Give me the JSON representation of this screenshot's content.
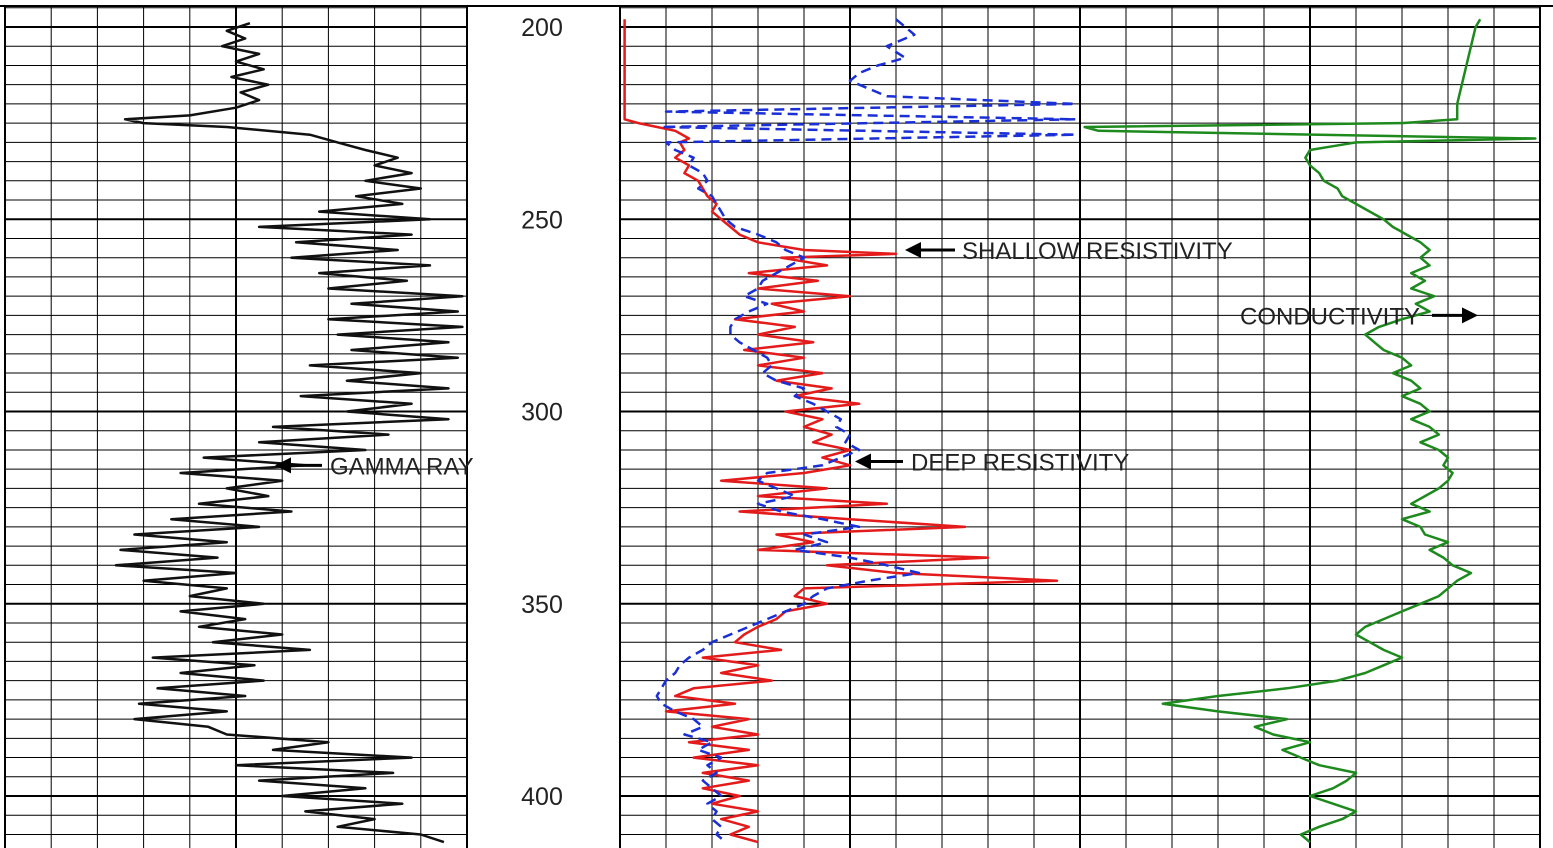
{
  "chart_data": {
    "type": "line",
    "depth_axis": {
      "labels": [
        "200",
        "250",
        "300",
        "350",
        "400"
      ],
      "values": [
        200,
        250,
        300,
        350,
        400
      ],
      "range": [
        198,
        412
      ],
      "direction": "downward"
    },
    "grid": true,
    "annotations": [
      {
        "text": "GAMMA RAY",
        "depth": 314,
        "series": "gamma_ray"
      },
      {
        "text": "SHALLOW RESISTIVITY",
        "depth": 258,
        "series": "shallow_resistivity"
      },
      {
        "text": "DEEP RESISTIVITY",
        "depth": 313,
        "series": "deep_resistivity"
      },
      {
        "text": "CONDUCTIVITY",
        "depth": 275,
        "series": "conductivity"
      }
    ],
    "series": [
      {
        "key": "gamma_ray",
        "track": 1,
        "style": "solid",
        "color": "#111111",
        "scale": [
          0,
          100
        ],
        "depth": [
          199,
          201,
          203,
          205,
          207,
          209,
          211,
          213,
          215,
          217,
          219,
          221,
          223,
          224,
          225,
          226,
          228,
          230,
          232,
          234,
          236,
          238,
          240,
          242,
          244,
          246,
          248,
          250,
          252,
          254,
          256,
          258,
          260,
          262,
          264,
          266,
          268,
          270,
          272,
          274,
          276,
          278,
          280,
          282,
          284,
          286,
          288,
          290,
          292,
          294,
          296,
          298,
          300,
          302,
          304,
          306,
          308,
          310,
          312,
          314,
          316,
          318,
          320,
          322,
          324,
          326,
          328,
          330,
          332,
          334,
          336,
          338,
          340,
          342,
          344,
          346,
          348,
          350,
          352,
          354,
          356,
          358,
          360,
          362,
          364,
          366,
          368,
          370,
          372,
          374,
          376,
          378,
          380,
          382,
          384,
          386,
          388,
          390,
          392,
          394,
          396,
          398,
          400,
          402,
          404,
          406,
          408,
          410,
          412
        ],
        "values": [
          53,
          48,
          52,
          47,
          55,
          50,
          56,
          49,
          57,
          51,
          55,
          50,
          40,
          26,
          30,
          48,
          66,
          72,
          78,
          85,
          80,
          88,
          78,
          90,
          76,
          86,
          68,
          92,
          55,
          88,
          63,
          85,
          62,
          92,
          68,
          87,
          70,
          99,
          75,
          98,
          70,
          99,
          72,
          96,
          75,
          98,
          66,
          90,
          74,
          96,
          64,
          88,
          74,
          96,
          58,
          83,
          55,
          78,
          43,
          65,
          38,
          60,
          48,
          57,
          42,
          62,
          36,
          55,
          28,
          48,
          25,
          46,
          24,
          50,
          30,
          48,
          40,
          56,
          38,
          52,
          42,
          60,
          45,
          66,
          32,
          54,
          38,
          56,
          33,
          52,
          29,
          48,
          28,
          44,
          48,
          70,
          58,
          88,
          50,
          84,
          55,
          78,
          60,
          86,
          65,
          80,
          72,
          90,
          95
        ]
      },
      {
        "key": "shallow_resistivity",
        "track": 2,
        "style": "solid",
        "color": "#e31b1b",
        "scale": [
          0,
          100
        ],
        "depth": [
          198,
          200,
          205,
          210,
          215,
          220,
          224,
          225,
          227,
          229,
          230,
          232,
          234,
          236,
          238,
          240,
          242,
          244,
          246,
          248,
          250,
          252,
          254,
          256,
          258,
          259,
          260,
          262,
          264,
          266,
          268,
          270,
          272,
          274,
          276,
          278,
          280,
          282,
          284,
          286,
          288,
          290,
          292,
          294,
          296,
          298,
          300,
          302,
          304,
          306,
          308,
          310,
          312,
          314,
          316,
          318,
          320,
          322,
          324,
          326,
          328,
          330,
          332,
          334,
          336,
          338,
          340,
          342,
          344,
          346,
          348,
          350,
          352,
          354,
          356,
          358,
          360,
          362,
          364,
          366,
          368,
          370,
          372,
          374,
          376,
          378,
          380,
          382,
          384,
          386,
          388,
          390,
          392,
          394,
          396,
          398,
          400,
          402,
          404,
          406,
          408,
          410,
          412
        ],
        "values": [
          1,
          1,
          1,
          1,
          1,
          1,
          1,
          4,
          12,
          15,
          13,
          14,
          12,
          15,
          14,
          17,
          18,
          19,
          21,
          20,
          22,
          24,
          26,
          30,
          40,
          60,
          35,
          45,
          28,
          43,
          30,
          50,
          33,
          40,
          25,
          38,
          30,
          42,
          27,
          40,
          30,
          44,
          34,
          46,
          38,
          52,
          36,
          44,
          40,
          46,
          42,
          50,
          44,
          50,
          40,
          22,
          45,
          30,
          58,
          26,
          50,
          75,
          34,
          42,
          30,
          80,
          45,
          60,
          95,
          40,
          38,
          45,
          36,
          34,
          30,
          27,
          25,
          35,
          18,
          30,
          22,
          33,
          16,
          12,
          25,
          10,
          28,
          20,
          30,
          15,
          28,
          16,
          30,
          18,
          28,
          18,
          26,
          20,
          30,
          22,
          28,
          24,
          30
        ]
      },
      {
        "key": "deep_resistivity",
        "track": 2,
        "style": "dashed",
        "color": "#1a2fd6",
        "scale": [
          0,
          100
        ],
        "depth": [
          198,
          200,
          202,
          205,
          208,
          210,
          212,
          214,
          216,
          218,
          220,
          222,
          224,
          226,
          228,
          230,
          232,
          234,
          236,
          238,
          240,
          242,
          244,
          246,
          248,
          250,
          252,
          254,
          256,
          258,
          260,
          262,
          264,
          266,
          268,
          270,
          272,
          274,
          276,
          278,
          280,
          282,
          284,
          286,
          288,
          290,
          292,
          294,
          296,
          298,
          300,
          302,
          304,
          306,
          308,
          310,
          312,
          314,
          316,
          318,
          320,
          322,
          324,
          326,
          328,
          330,
          332,
          334,
          336,
          338,
          340,
          342,
          344,
          346,
          348,
          350,
          352,
          354,
          356,
          358,
          360,
          362,
          364,
          366,
          368,
          370,
          372,
          374,
          376,
          378,
          380,
          382,
          384,
          386,
          388,
          390,
          392,
          394,
          396,
          398,
          400,
          402,
          404,
          406,
          408,
          410,
          412
        ],
        "values": [
          60,
          62,
          64,
          58,
          62,
          56,
          52,
          50,
          54,
          58,
          99,
          10,
          99,
          9,
          99,
          10,
          12,
          16,
          15,
          18,
          19,
          17,
          20,
          21,
          22,
          23,
          25,
          30,
          34,
          36,
          40,
          37,
          34,
          31,
          30,
          27,
          32,
          28,
          25,
          24,
          24,
          26,
          29,
          32,
          33,
          31,
          34,
          40,
          38,
          42,
          45,
          48,
          47,
          50,
          49,
          52,
          48,
          44,
          32,
          30,
          34,
          38,
          30,
          35,
          44,
          52,
          40,
          45,
          38,
          50,
          58,
          65,
          54,
          45,
          42,
          40,
          36,
          32,
          28,
          24,
          20,
          18,
          15,
          13,
          12,
          10,
          9,
          8,
          9,
          12,
          16,
          18,
          14,
          20,
          17,
          22,
          19,
          21,
          18,
          20,
          22,
          19,
          21,
          20,
          22,
          21,
          23
        ]
      },
      {
        "key": "conductivity",
        "track": 3,
        "style": "solid",
        "color": "#1e8a1e",
        "scale": [
          0,
          100
        ],
        "depth": [
          198,
          200,
          205,
          210,
          215,
          220,
          224,
          225,
          226,
          227,
          228,
          229,
          230,
          231,
          232,
          234,
          236,
          238,
          240,
          242,
          244,
          246,
          248,
          250,
          252,
          254,
          256,
          258,
          260,
          262,
          264,
          266,
          268,
          270,
          272,
          274,
          276,
          278,
          280,
          282,
          284,
          286,
          288,
          290,
          292,
          294,
          296,
          298,
          300,
          302,
          304,
          306,
          308,
          310,
          312,
          314,
          316,
          318,
          320,
          322,
          324,
          326,
          328,
          330,
          332,
          334,
          336,
          338,
          340,
          342,
          344,
          346,
          348,
          350,
          352,
          354,
          356,
          358,
          360,
          362,
          364,
          366,
          368,
          370,
          372,
          374,
          376,
          378,
          380,
          382,
          384,
          386,
          388,
          390,
          392,
          394,
          396,
          398,
          400,
          402,
          404,
          406,
          408,
          410,
          412
        ],
        "values": [
          87,
          86,
          85,
          84,
          83,
          82,
          82,
          70,
          1,
          4,
          52,
          99,
          60,
          55,
          50,
          49,
          50,
          52,
          53,
          56,
          57,
          60,
          63,
          66,
          68,
          71,
          74,
          76,
          74,
          76,
          72,
          75,
          72,
          77,
          73,
          76,
          70,
          65,
          62,
          64,
          66,
          70,
          72,
          68,
          72,
          74,
          70,
          74,
          76,
          72,
          76,
          78,
          74,
          78,
          80,
          79,
          81,
          80,
          78,
          75,
          72,
          76,
          70,
          74,
          75,
          80,
          76,
          79,
          81,
          85,
          82,
          80,
          78,
          74,
          70,
          66,
          62,
          60,
          63,
          66,
          70,
          66,
          62,
          56,
          45,
          30,
          18,
          30,
          45,
          38,
          42,
          50,
          44,
          48,
          52,
          60,
          58,
          55,
          50,
          55,
          60,
          57,
          52,
          48,
          50
        ]
      }
    ]
  }
}
